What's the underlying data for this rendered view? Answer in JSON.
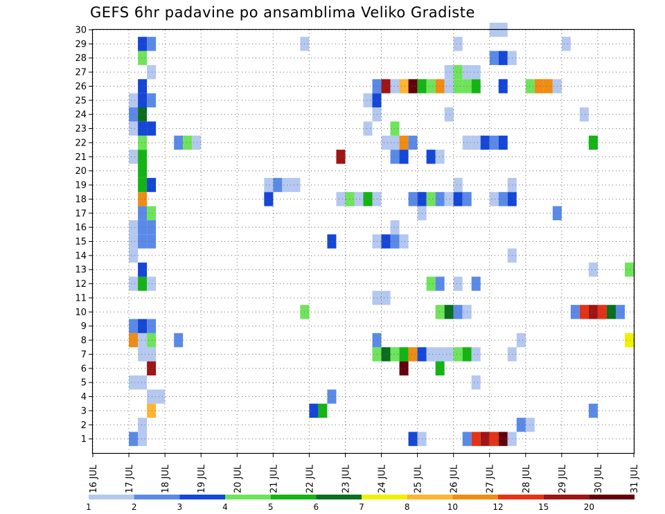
{
  "chart_data": {
    "type": "heatmap",
    "title": "GEFS 6hr padavine po ansamblima Veliko Gradiste",
    "x_ticks": [
      {
        "day": 16,
        "label": "16 JUL"
      },
      {
        "day": 17,
        "label": "17 JUL"
      },
      {
        "day": 18,
        "label": "18 JUL"
      },
      {
        "day": 19,
        "label": "19 JUL"
      },
      {
        "day": 20,
        "label": "20 JUL"
      },
      {
        "day": 21,
        "label": "21 JUL"
      },
      {
        "day": 22,
        "label": "22 JUL"
      },
      {
        "day": 23,
        "label": "23 JUL"
      },
      {
        "day": 24,
        "label": "24 JUL"
      },
      {
        "day": 25,
        "label": "25 JUL"
      },
      {
        "day": 26,
        "label": "26 JUL"
      },
      {
        "day": 27,
        "label": "27 JUL"
      },
      {
        "day": 28,
        "label": "28 JUL"
      },
      {
        "day": 29,
        "label": "29 JUL"
      },
      {
        "day": 30,
        "label": "30 JUL"
      },
      {
        "day": 31,
        "label": "31 JUL"
      }
    ],
    "xlim": [
      16,
      31
    ],
    "y_ticks": [
      "1",
      "2",
      "3",
      "4",
      "5",
      "6",
      "7",
      "8",
      "9",
      "10",
      "11",
      "12",
      "13",
      "14",
      "15",
      "16",
      "17",
      "18",
      "19",
      "20",
      "21",
      "22",
      "23",
      "24",
      "25",
      "26",
      "27",
      "28",
      "29",
      "30"
    ],
    "ylim": [
      0,
      30
    ],
    "colorbar": {
      "labels": [
        "1",
        "2",
        "3",
        "4",
        "5",
        "6",
        "7",
        "8",
        "10",
        "12",
        "15",
        "20"
      ],
      "colors": [
        "#b4c8f0",
        "#5a8ae8",
        "#1446d8",
        "#6ee45a",
        "#14b414",
        "#0a6e1e",
        "#f0f000",
        "#ffb432",
        "#f08c14",
        "#e63214",
        "#a01414",
        "#64000a"
      ]
    },
    "cells": [
      [
        17,
        17.25,
        1,
        2
      ],
      [
        17.25,
        17.5,
        1,
        1
      ],
      [
        17.5,
        17.75,
        4,
        1
      ],
      [
        17.75,
        18,
        4,
        1
      ],
      [
        17.25,
        17.5,
        2,
        1
      ],
      [
        17.5,
        17.75,
        3,
        8
      ],
      [
        17,
        17.25,
        5,
        1
      ],
      [
        17.25,
        17.5,
        5,
        1
      ],
      [
        17.5,
        17.75,
        6,
        11
      ],
      [
        17.25,
        17.5,
        7,
        1
      ],
      [
        17.5,
        17.75,
        7,
        1
      ],
      [
        17,
        17.25,
        8,
        9
      ],
      [
        17.25,
        17.5,
        8,
        1
      ],
      [
        17.5,
        17.75,
        8,
        4
      ],
      [
        17,
        17.25,
        9,
        2
      ],
      [
        17.25,
        17.5,
        9,
        3
      ],
      [
        17.5,
        17.75,
        9,
        2
      ],
      [
        17,
        17.25,
        12,
        1
      ],
      [
        17.25,
        17.5,
        12,
        5
      ],
      [
        17.5,
        17.75,
        12,
        1
      ],
      [
        17.25,
        17.5,
        13,
        3
      ],
      [
        17,
        17.25,
        14,
        1
      ],
      [
        17,
        17.25,
        15,
        1
      ],
      [
        17.25,
        17.5,
        15,
        2
      ],
      [
        17.5,
        17.75,
        15,
        2
      ],
      [
        17,
        17.25,
        16,
        1
      ],
      [
        17.25,
        17.5,
        16,
        2
      ],
      [
        17.5,
        17.75,
        16,
        2
      ],
      [
        17.25,
        17.5,
        17,
        2
      ],
      [
        17.5,
        17.75,
        17,
        4
      ],
      [
        17.25,
        17.5,
        18,
        9
      ],
      [
        17.25,
        17.5,
        19,
        5
      ],
      [
        17.5,
        17.75,
        19,
        3
      ],
      [
        17.25,
        17.5,
        20,
        5
      ],
      [
        17,
        17.25,
        21,
        1
      ],
      [
        17.25,
        17.5,
        21,
        5
      ],
      [
        17.25,
        17.5,
        22,
        4
      ],
      [
        17,
        17.25,
        23,
        1
      ],
      [
        17.25,
        17.5,
        23,
        3
      ],
      [
        17.5,
        17.75,
        23,
        3
      ],
      [
        17,
        17.25,
        24,
        2
      ],
      [
        17.25,
        17.5,
        24,
        6
      ],
      [
        17,
        17.25,
        25,
        1
      ],
      [
        17.25,
        17.5,
        25,
        3
      ],
      [
        17.5,
        17.75,
        25,
        2
      ],
      [
        17.25,
        17.5,
        26,
        3
      ],
      [
        17.5,
        17.75,
        27,
        1
      ],
      [
        17.25,
        17.5,
        28,
        4
      ],
      [
        17.25,
        17.5,
        29,
        3
      ],
      [
        17.5,
        17.75,
        29,
        2
      ],
      [
        18.25,
        18.5,
        8,
        2
      ],
      [
        18.25,
        18.5,
        22,
        2
      ],
      [
        18.5,
        18.75,
        22,
        4
      ],
      [
        18.75,
        19,
        22,
        1
      ],
      [
        20.75,
        21,
        18,
        3
      ],
      [
        20.75,
        21,
        19,
        1
      ],
      [
        21,
        21.25,
        19,
        2
      ],
      [
        21.25,
        21.5,
        19,
        1
      ],
      [
        21.5,
        21.75,
        19,
        1
      ],
      [
        21.75,
        22,
        10,
        4
      ],
      [
        21.75,
        22,
        29,
        1
      ],
      [
        22,
        22.25,
        3,
        3
      ],
      [
        22.25,
        22.5,
        3,
        5
      ],
      [
        22.5,
        22.75,
        4,
        2
      ],
      [
        22.5,
        22.75,
        15,
        3
      ],
      [
        22.75,
        23,
        21,
        11
      ],
      [
        22.75,
        23,
        18,
        1
      ],
      [
        23,
        23.25,
        18,
        4
      ],
      [
        23.25,
        23.5,
        18,
        1
      ],
      [
        23.5,
        23.75,
        18,
        5
      ],
      [
        23.75,
        24,
        18,
        1
      ],
      [
        23.5,
        23.75,
        23,
        1
      ],
      [
        23.5,
        23.75,
        25,
        1
      ],
      [
        23.75,
        24,
        7,
        4
      ],
      [
        24,
        24.25,
        7,
        6
      ],
      [
        24.25,
        24.5,
        7,
        4
      ],
      [
        24.5,
        24.75,
        7,
        5
      ],
      [
        24.75,
        25,
        7,
        9
      ],
      [
        25,
        25.25,
        7,
        3
      ],
      [
        25.25,
        25.5,
        7,
        1
      ],
      [
        25.5,
        25.75,
        7,
        1
      ],
      [
        25.75,
        26,
        7,
        1
      ],
      [
        26,
        26.25,
        7,
        4
      ],
      [
        26.25,
        26.5,
        7,
        5
      ],
      [
        26.5,
        26.75,
        7,
        1
      ],
      [
        23.75,
        24,
        8,
        2
      ],
      [
        23.75,
        24,
        11,
        1
      ],
      [
        24,
        24.25,
        11,
        1
      ],
      [
        23.75,
        24,
        15,
        1
      ],
      [
        24,
        24.25,
        15,
        3
      ],
      [
        24.25,
        24.5,
        15,
        2
      ],
      [
        24.5,
        24.75,
        15,
        1
      ],
      [
        24.25,
        24.5,
        16,
        1
      ],
      [
        23.75,
        24,
        24,
        1
      ],
      [
        23.75,
        24,
        25,
        3
      ],
      [
        23.75,
        24,
        26,
        2
      ],
      [
        24,
        24.25,
        26,
        11
      ],
      [
        24.25,
        24.5,
        26,
        1
      ],
      [
        24.5,
        24.75,
        26,
        8
      ],
      [
        24.75,
        25,
        26,
        12
      ],
      [
        25,
        25.25,
        26,
        5
      ],
      [
        25.25,
        25.5,
        26,
        4
      ],
      [
        25.5,
        25.75,
        26,
        9
      ],
      [
        25.75,
        26,
        26,
        1
      ],
      [
        26,
        26.25,
        26,
        4
      ],
      [
        26.25,
        26.5,
        26,
        4
      ],
      [
        26.5,
        26.75,
        26,
        5
      ],
      [
        24,
        24.25,
        22,
        1
      ],
      [
        24.25,
        24.5,
        22,
        1
      ],
      [
        24.5,
        24.75,
        22,
        9
      ],
      [
        24.75,
        25,
        22,
        2
      ],
      [
        24.25,
        24.5,
        21,
        2
      ],
      [
        24.5,
        24.75,
        21,
        3
      ],
      [
        24.25,
        24.5,
        23,
        4
      ],
      [
        24.5,
        24.75,
        6,
        12
      ],
      [
        24.75,
        25,
        1,
        3
      ],
      [
        25,
        25.25,
        1,
        1
      ],
      [
        24.75,
        25,
        18,
        2
      ],
      [
        25,
        25.25,
        18,
        3
      ],
      [
        25.25,
        25.5,
        18,
        4
      ],
      [
        25.5,
        25.75,
        18,
        2
      ],
      [
        25.75,
        26,
        18,
        1
      ],
      [
        26,
        26.25,
        18,
        3
      ],
      [
        26.25,
        26.5,
        18,
        2
      ],
      [
        25,
        25.25,
        17,
        1
      ],
      [
        25.25,
        25.5,
        12,
        4
      ],
      [
        25.5,
        25.75,
        12,
        2
      ],
      [
        25.25,
        25.5,
        21,
        3
      ],
      [
        25.5,
        25.75,
        21,
        1
      ],
      [
        25.5,
        25.75,
        6,
        5
      ],
      [
        25.5,
        25.75,
        10,
        4
      ],
      [
        25.75,
        26,
        10,
        6
      ],
      [
        26,
        26.25,
        10,
        2
      ],
      [
        26.25,
        26.5,
        10,
        1
      ],
      [
        25.75,
        26,
        24,
        1
      ],
      [
        25.75,
        26,
        27,
        1
      ],
      [
        26,
        26.25,
        27,
        4
      ],
      [
        26.25,
        26.5,
        27,
        1
      ],
      [
        26.5,
        26.75,
        27,
        1
      ],
      [
        26,
        26.25,
        12,
        1
      ],
      [
        26.5,
        26.75,
        12,
        2
      ],
      [
        26,
        26.25,
        19,
        1
      ],
      [
        26,
        26.25,
        29,
        1
      ],
      [
        26.25,
        26.5,
        22,
        1
      ],
      [
        26.5,
        26.75,
        22,
        1
      ],
      [
        26.75,
        27,
        22,
        3
      ],
      [
        27,
        27.25,
        22,
        2
      ],
      [
        27.25,
        27.5,
        22,
        3
      ],
      [
        26.5,
        26.75,
        5,
        1
      ],
      [
        26.25,
        26.5,
        1,
        2
      ],
      [
        26.5,
        26.75,
        1,
        10
      ],
      [
        26.75,
        27,
        1,
        11
      ],
      [
        27,
        27.25,
        1,
        10
      ],
      [
        27.25,
        27.5,
        1,
        12
      ],
      [
        27.5,
        27.75,
        1,
        1
      ],
      [
        27,
        27.25,
        18,
        1
      ],
      [
        27.25,
        27.5,
        18,
        2
      ],
      [
        27.5,
        27.75,
        18,
        3
      ],
      [
        27,
        27.25,
        28,
        2
      ],
      [
        27.25,
        27.5,
        28,
        3
      ],
      [
        27.5,
        27.75,
        28,
        1
      ],
      [
        27.25,
        27.5,
        26,
        3
      ],
      [
        27,
        27.5,
        30,
        1
      ],
      [
        27.5,
        27.75,
        7,
        1
      ],
      [
        27.75,
        28,
        8,
        1
      ],
      [
        27.5,
        27.75,
        14,
        1
      ],
      [
        27.5,
        27.75,
        19,
        1
      ],
      [
        27.75,
        28,
        2,
        2
      ],
      [
        28,
        28.25,
        2,
        1
      ],
      [
        28,
        28.25,
        26,
        4
      ],
      [
        28.25,
        28.5,
        26,
        9
      ],
      [
        28.5,
        28.75,
        26,
        9
      ],
      [
        28.75,
        29,
        26,
        1
      ],
      [
        28.75,
        29,
        17,
        2
      ],
      [
        29,
        29.25,
        29,
        1
      ],
      [
        29.5,
        29.75,
        24,
        1
      ],
      [
        29.75,
        30,
        22,
        5
      ],
      [
        29.75,
        30,
        13,
        1
      ],
      [
        29.75,
        30,
        3,
        2
      ],
      [
        29.25,
        29.5,
        10,
        2
      ],
      [
        29.5,
        29.75,
        10,
        10
      ],
      [
        29.75,
        30,
        10,
        11
      ],
      [
        30,
        30.25,
        10,
        10
      ],
      [
        30.25,
        30.5,
        10,
        6
      ],
      [
        30.5,
        30.75,
        10,
        2
      ],
      [
        30.75,
        31,
        13,
        4
      ],
      [
        30.75,
        31,
        8,
        7
      ]
    ]
  }
}
